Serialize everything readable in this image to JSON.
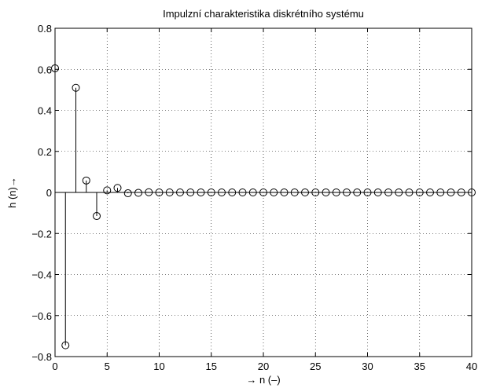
{
  "chart_data": {
    "type": "stem",
    "title": "Impulzní charakteristika diskrétního systému",
    "xlabel": "→ n (–)",
    "ylabel": "h (n)→",
    "xlim": [
      0,
      40
    ],
    "ylim": [
      -0.8,
      0.8
    ],
    "xticks": [
      "0",
      "5",
      "10",
      "15",
      "20",
      "25",
      "30",
      "35",
      "40"
    ],
    "yticks": [
      "0.8",
      "0.6",
      "0.4",
      "0.2",
      "0",
      "−0.2",
      "−0.4",
      "−0.6",
      "−0.8"
    ],
    "grid": true,
    "marker": "circle",
    "x": [
      0,
      1,
      2,
      3,
      4,
      5,
      6,
      7,
      8,
      9,
      10,
      11,
      12,
      13,
      14,
      15,
      16,
      17,
      18,
      19,
      20,
      21,
      22,
      23,
      24,
      25,
      26,
      27,
      28,
      29,
      30,
      31,
      32,
      33,
      34,
      35,
      36,
      37,
      38,
      39,
      40
    ],
    "values": [
      0.605,
      -0.745,
      0.51,
      0.058,
      -0.115,
      0.01,
      0.022,
      -0.004,
      -0.002,
      0.001,
      0,
      0,
      0,
      0,
      0,
      0,
      0,
      0,
      0,
      0,
      0,
      0,
      0,
      0,
      0,
      0,
      0,
      0,
      0,
      0,
      0,
      0,
      0,
      0,
      0,
      0,
      0,
      0,
      0,
      0,
      0
    ]
  }
}
